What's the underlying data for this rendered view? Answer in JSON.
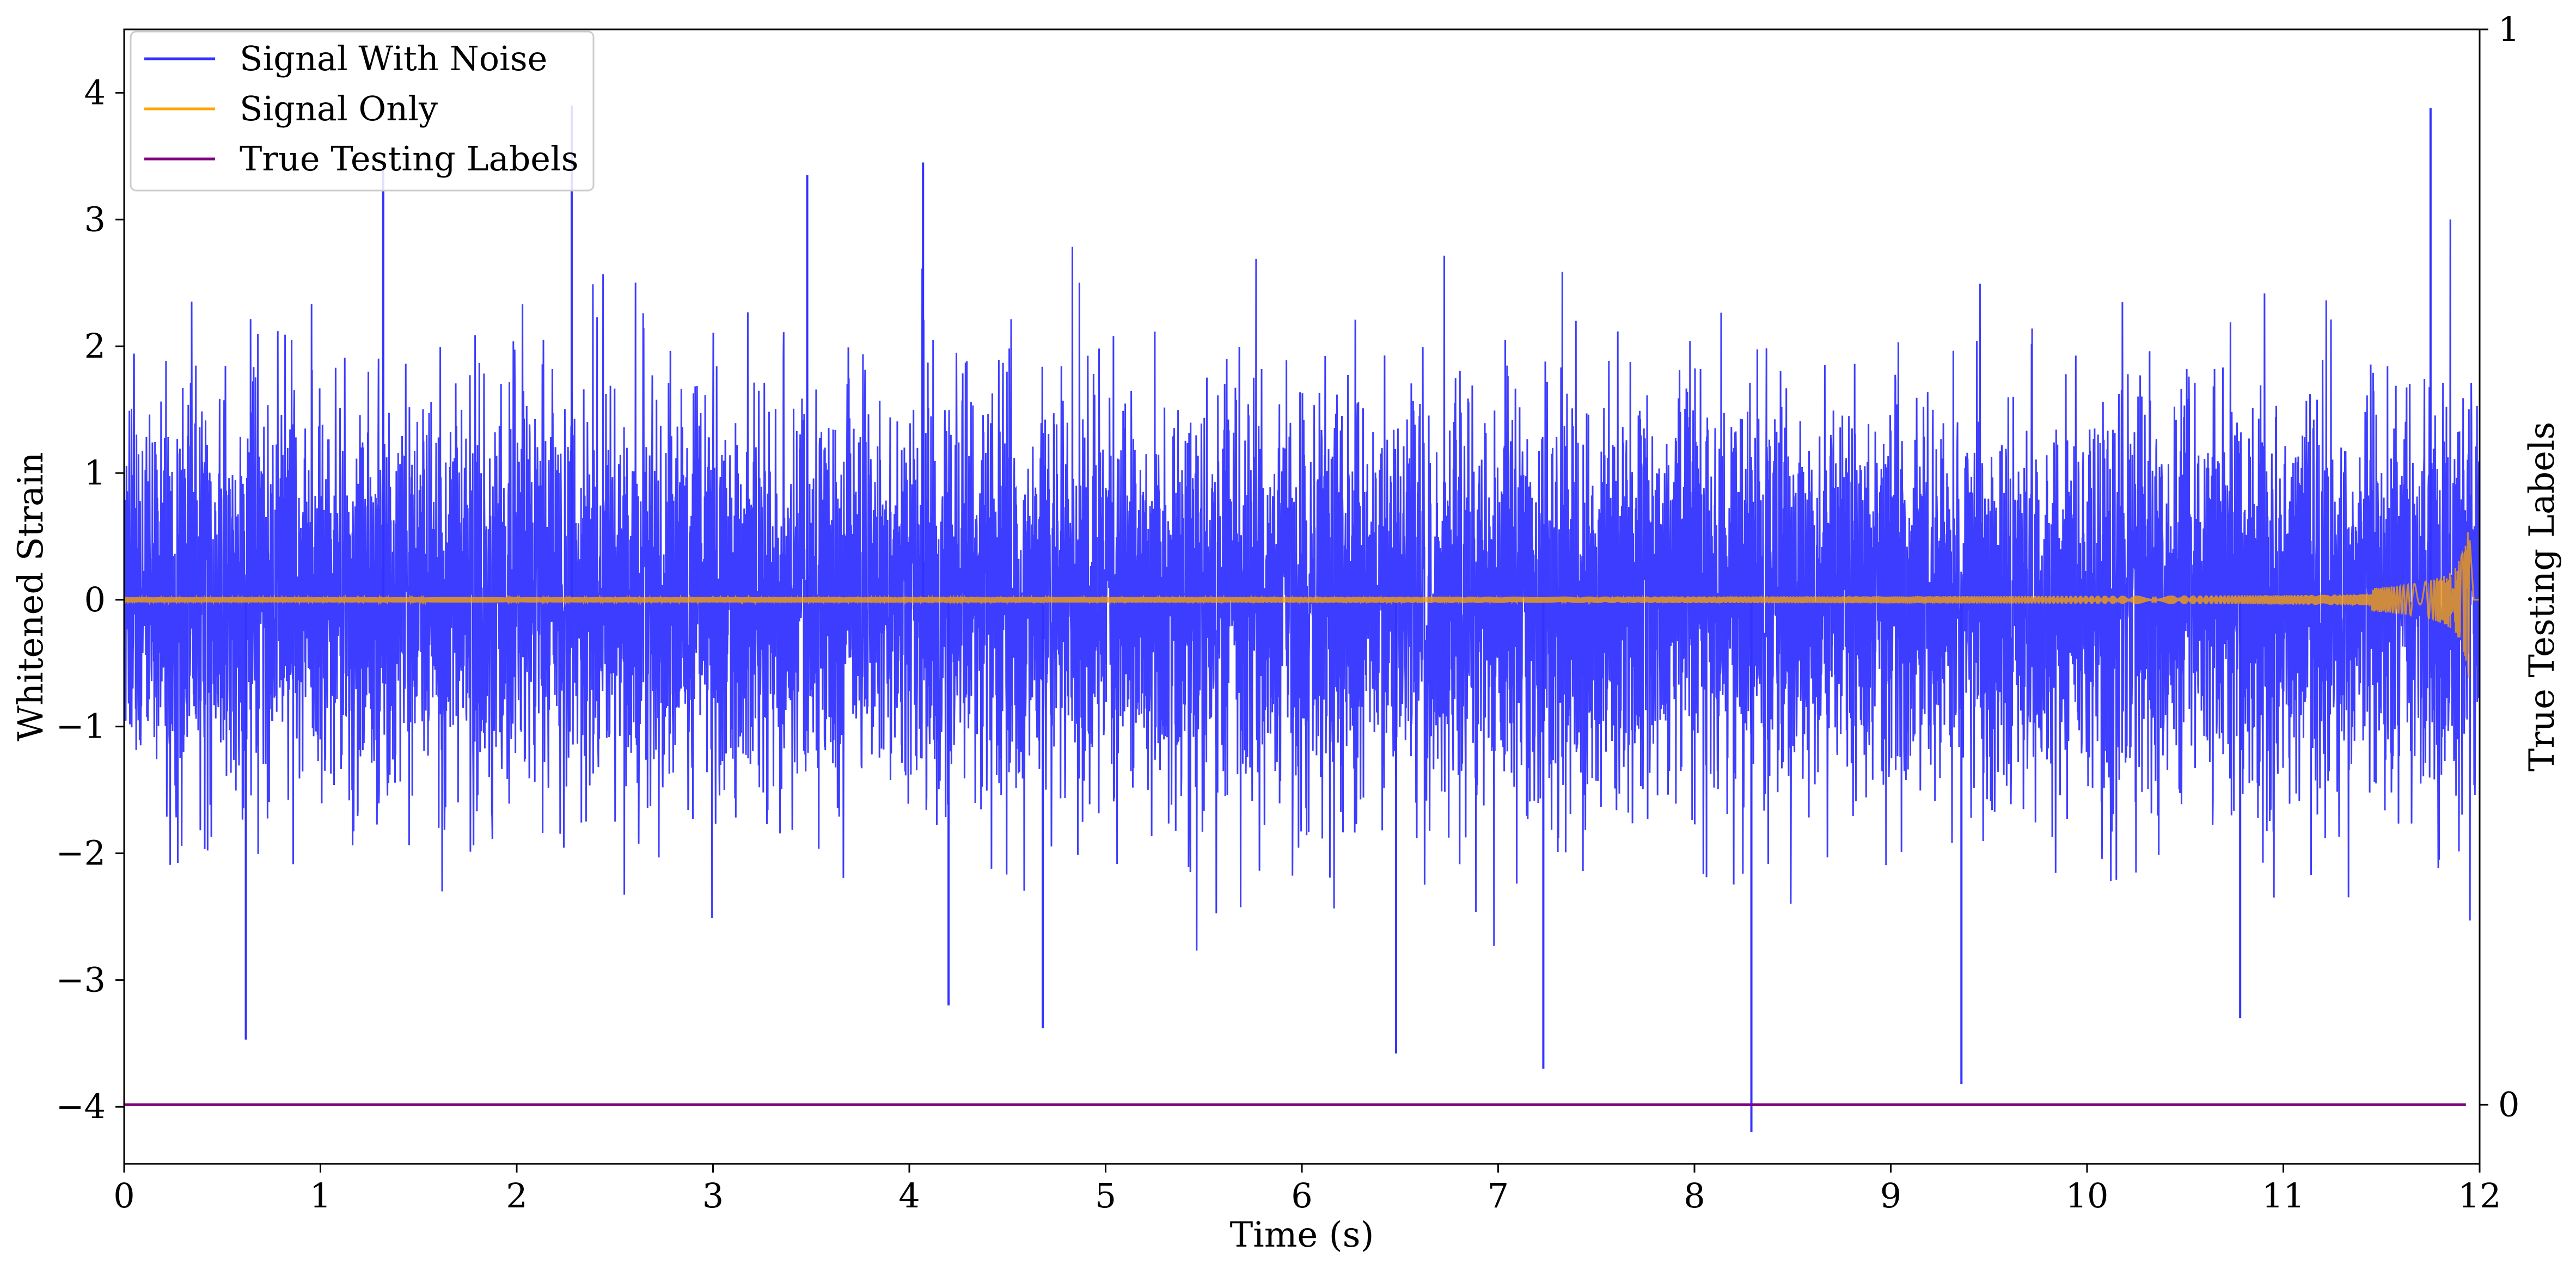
{
  "chart_data": {
    "type": "line",
    "xlabel": "Time (s)",
    "ylabel": "Whitened Strain",
    "y2label": "True Testing Labels",
    "xlim": [
      0,
      12
    ],
    "ylim": [
      -4.45,
      4.5
    ],
    "y2lim": [
      -0.055,
      1
    ],
    "xticks": [
      0,
      1,
      2,
      3,
      4,
      5,
      6,
      7,
      8,
      9,
      10,
      11,
      12
    ],
    "yticks": [
      -4,
      -3,
      -2,
      -1,
      0,
      1,
      2,
      3,
      4
    ],
    "yticklabels": [
      "−4",
      "−3",
      "−2",
      "−1",
      "0",
      "1",
      "2",
      "3",
      "4"
    ],
    "y2ticks": [
      0,
      1
    ],
    "legend": {
      "placement": "upper-left"
    },
    "grid": false,
    "series": [
      {
        "name": "Signal With Noise",
        "color": "#3333ff",
        "description_values": "noise, std ~0.8",
        "noise_std": 0.8,
        "spikes": [
          {
            "x": 0.62,
            "y": -3.47
          },
          {
            "x": 1.32,
            "y": 3.45
          },
          {
            "x": 2.28,
            "y": 3.9
          },
          {
            "x": 3.48,
            "y": 3.35
          },
          {
            "x": 4.07,
            "y": 3.45
          },
          {
            "x": 4.2,
            "y": -3.2
          },
          {
            "x": 4.68,
            "y": -3.38
          },
          {
            "x": 6.48,
            "y": -3.58
          },
          {
            "x": 7.23,
            "y": -3.7
          },
          {
            "x": 8.29,
            "y": -4.2
          },
          {
            "x": 9.36,
            "y": -3.82
          },
          {
            "x": 10.78,
            "y": -3.3
          },
          {
            "x": 11.75,
            "y": 3.88
          }
        ]
      },
      {
        "name": "Signal Only",
        "color": "#ffa500",
        "chirp_end_time": 11.95,
        "peak_amplitude": 0.67,
        "base_amplitude": 0.02
      },
      {
        "name": "True Testing Labels",
        "color": "#800080",
        "axis": "right",
        "x": [
          0,
          11.93
        ],
        "y": [
          0,
          0
        ]
      }
    ]
  }
}
